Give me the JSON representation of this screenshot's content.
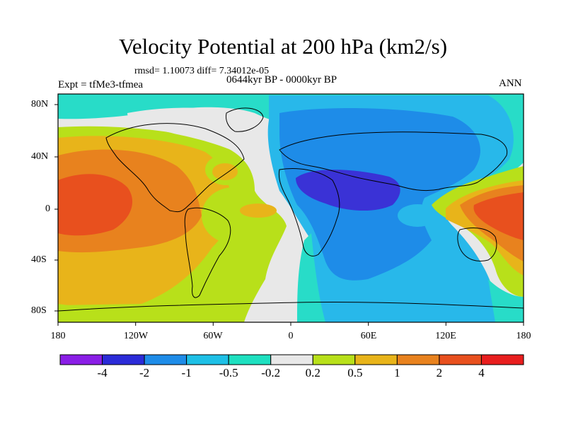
{
  "title": "Velocity Potential at 200 hPa (km2/s)",
  "stats": {
    "rmsd_diff": "rmsd= 1.10073 diff= 7.34012e-05"
  },
  "left_label": "Expt = tfMe3-tfmea",
  "center_label": "0644kyr BP - 0000kyr BP",
  "right_label": "ANN",
  "x_ticks": [
    "180",
    "120W",
    "60W",
    "0",
    "60E",
    "120E",
    "180"
  ],
  "y_ticks": [
    "80N",
    "40N",
    "0",
    "40S",
    "80S"
  ],
  "colorbar": {
    "labels": [
      "-4",
      "-2",
      "-1",
      "-0.5",
      "-0.2",
      "0.2",
      "0.5",
      "1",
      "2",
      "4"
    ],
    "colors": [
      "#8a1ee6",
      "#2b2bd8",
      "#1e8ce8",
      "#1ec0e6",
      "#1ee0c0",
      "#e8e8e8",
      "#b8e01a",
      "#e8b41a",
      "#e8821e",
      "#e8501e",
      "#e81e1e"
    ]
  },
  "palette": {
    "purple": "#8a1ee6",
    "blue_dark": "#3a32d6",
    "blue": "#1e8ce8",
    "blue_light": "#28b8ea",
    "cyan": "#28dcc8",
    "gray": "#e8e8e8",
    "lime": "#b8e01a",
    "yellow": "#e8b41a",
    "orange": "#e8821e",
    "red_orange": "#e8501e",
    "red": "#e81e1e"
  }
}
